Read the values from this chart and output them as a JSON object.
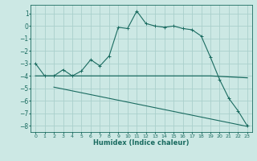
{
  "xlabel": "Humidex (Indice chaleur)",
  "bg_color": "#cce8e4",
  "grid_color": "#aad0cc",
  "line_color": "#1a6b60",
  "x_ticks": [
    0,
    1,
    2,
    3,
    4,
    5,
    6,
    7,
    8,
    9,
    10,
    11,
    12,
    13,
    14,
    15,
    16,
    17,
    18,
    19,
    20,
    21,
    22,
    23
  ],
  "ylim": [
    -8.5,
    1.7
  ],
  "xlim": [
    -0.5,
    23.5
  ],
  "yticks": [
    1,
    0,
    -1,
    -2,
    -3,
    -4,
    -5,
    -6,
    -7,
    -8
  ],
  "line1_x": [
    0,
    1,
    2,
    3,
    4,
    5,
    6,
    7,
    8,
    9,
    10,
    11,
    12,
    13,
    14,
    15,
    16,
    17,
    18,
    19,
    20,
    21,
    22,
    23
  ],
  "line1_y": [
    -3.0,
    -4.0,
    -4.0,
    -3.5,
    -4.0,
    -3.6,
    -2.7,
    -3.2,
    -2.4,
    -0.1,
    -0.2,
    1.2,
    0.2,
    0.0,
    -0.1,
    0.0,
    -0.2,
    -0.3,
    -0.8,
    -2.5,
    -4.3,
    -5.8,
    -6.8,
    -8.0
  ],
  "line2_x": [
    0,
    19,
    23
  ],
  "line2_y": [
    -4.0,
    -4.0,
    -4.15
  ],
  "line3_x": [
    2,
    23
  ],
  "line3_y": [
    -4.9,
    -8.05
  ],
  "marker_size": 2.5
}
